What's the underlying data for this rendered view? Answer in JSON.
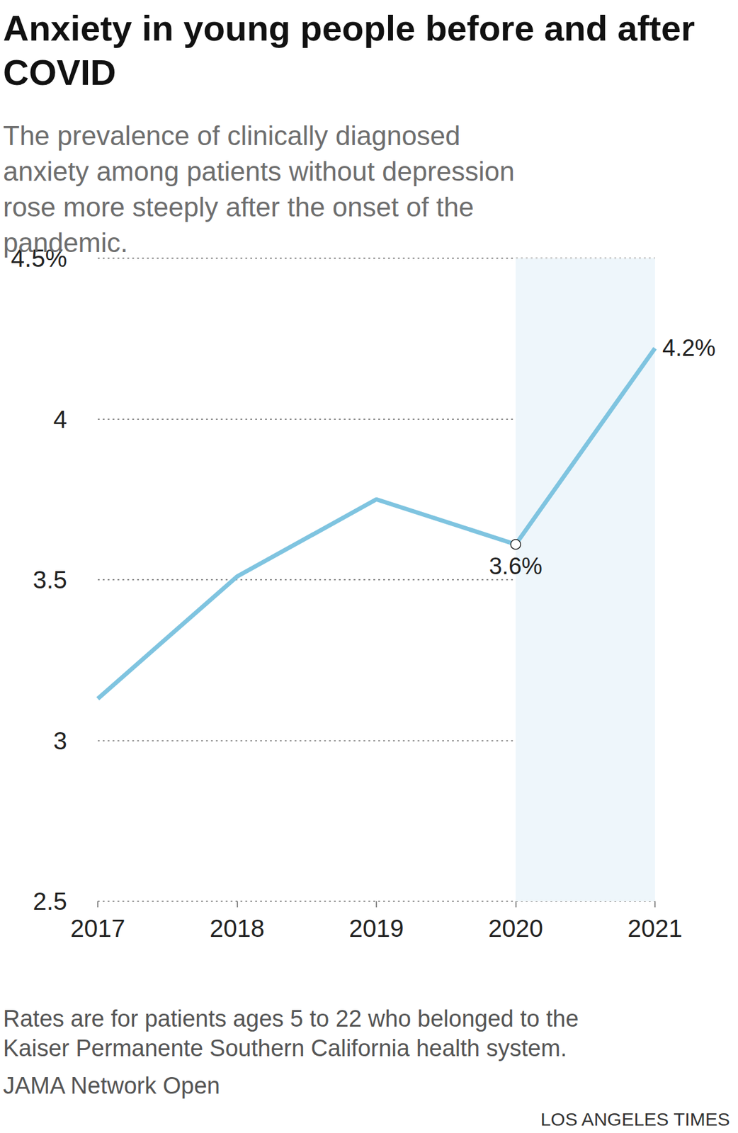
{
  "chart_data": {
    "type": "line",
    "title": "Anxiety in young people before and after COVID",
    "subtitle": "The prevalence of clinically diagnosed anxiety among patients without depression rose more steeply after the onset of the pandemic.",
    "categories": [
      "2017",
      "2018",
      "2019",
      "2020",
      "2021"
    ],
    "values": [
      3.13,
      3.51,
      3.75,
      3.61,
      4.22
    ],
    "value_labels": [
      null,
      null,
      null,
      "3.6%",
      "4.2%"
    ],
    "data_labels": true,
    "color": "#7fc4e0",
    "ylim": [
      2.5,
      4.5
    ],
    "yticks": [
      2.5,
      3,
      3.5,
      4,
      {
        "value": 4.5,
        "label": "4.5%"
      }
    ],
    "grid": true,
    "highlight": {
      "from": "2020",
      "to": "2021"
    },
    "note": "Rates are for patients ages 5 to 22 who belonged to the Kaiser Permanente Southern California health system.",
    "source": "JAMA Network Open",
    "credit": "LOS ANGELES TIMES"
  }
}
